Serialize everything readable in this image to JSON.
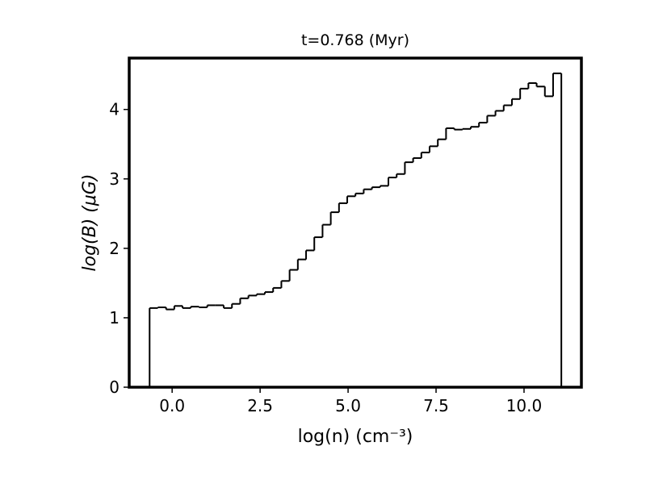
{
  "chart_data": {
    "type": "histogram",
    "title": "t=0.768 (Myr)",
    "xlabel": "log(n) (cm⁻³)",
    "ylabel": "log(B) (μG)",
    "color": "#000000",
    "bins": [
      -0.64,
      -0.406,
      -0.172,
      0.062,
      0.296,
      0.53,
      0.764,
      0.998,
      1.232,
      1.466,
      1.7,
      1.934,
      2.168,
      2.402,
      2.636,
      2.87,
      3.104,
      3.338,
      3.572,
      3.806,
      4.04,
      4.274,
      4.508,
      4.742,
      4.976,
      5.21,
      5.444,
      5.678,
      5.912,
      6.146,
      6.38,
      6.614,
      6.848,
      7.082,
      7.316,
      7.55,
      7.784,
      8.018,
      8.252,
      8.486,
      8.72,
      8.954,
      9.188,
      9.422,
      9.656,
      9.89,
      10.124,
      10.358,
      10.592,
      10.826,
      11.06
    ],
    "values": [
      1.14,
      1.15,
      1.12,
      1.17,
      1.14,
      1.16,
      1.15,
      1.18,
      1.18,
      1.14,
      1.2,
      1.28,
      1.32,
      1.34,
      1.37,
      1.43,
      1.53,
      1.69,
      1.84,
      1.97,
      2.16,
      2.34,
      2.52,
      2.65,
      2.75,
      2.79,
      2.85,
      2.88,
      2.9,
      3.02,
      3.07,
      3.24,
      3.3,
      3.38,
      3.47,
      3.57,
      3.73,
      3.71,
      3.72,
      3.75,
      3.81,
      3.91,
      3.98,
      4.06,
      4.15,
      4.3,
      4.38,
      4.33,
      4.19,
      4.52
    ],
    "xlim": [
      -1.22,
      11.63
    ],
    "ylim": [
      0,
      4.74
    ],
    "xticks": [
      {
        "value": 0,
        "label": "0.0"
      },
      2.5,
      {
        "value": 5,
        "label": "5.0"
      },
      7.5,
      {
        "value": 10,
        "label": "10.0"
      }
    ],
    "yticks": [
      0,
      1,
      2,
      3,
      4
    ]
  }
}
